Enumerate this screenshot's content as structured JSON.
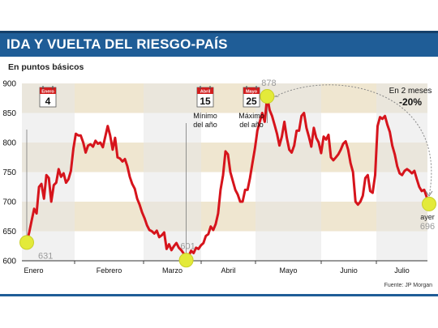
{
  "header": {
    "title": "IDA Y VUELTA DEL RIESGO-PAÍS"
  },
  "subtitle": "En puntos básicos",
  "source": "Fuente: JP Morgan",
  "colors": {
    "header": "#1f5d97",
    "line": "#d6141c",
    "band": "#efe6d0",
    "marker": "#e3ea3a",
    "month_shade": "#e6e6e6"
  },
  "chart_data": {
    "type": "line",
    "title": "IDA Y VUELTA DEL RIESGO-PAÍS",
    "ylabel": "En puntos básicos",
    "ylim": [
      600,
      900
    ],
    "yticks": [
      600,
      650,
      700,
      750,
      800,
      850,
      900
    ],
    "months": [
      "Enero",
      "Febrero",
      "Marzo",
      "Abril",
      "Mayo",
      "Junio",
      "Julio"
    ],
    "grid": false,
    "series": [
      {
        "values": [
          631,
          648,
          668,
          688,
          680,
          725,
          730,
          705,
          745,
          740,
          700,
          728,
          732,
          755,
          742,
          748,
          732,
          738,
          752,
          790,
          815,
          812,
          812,
          800,
          783,
          795,
          797,
          793,
          803,
          798,
          800,
          792,
          810,
          828,
          812,
          788,
          808,
          775,
          773,
          768,
          772,
          760,
          742,
          730,
          722,
          705,
          695,
          682,
          672,
          660,
          652,
          650,
          646,
          651,
          640,
          643,
          648,
          620,
          628,
          618,
          625,
          630,
          622,
          618,
          612,
          601,
          608,
          617,
          613,
          622,
          620,
          626,
          630,
          642,
          645,
          658,
          652,
          662,
          680,
          720,
          745,
          785,
          780,
          750,
          735,
          720,
          712,
          700,
          700,
          720,
          720,
          740,
          765,
          790,
          820,
          835,
          850,
          835,
          878,
          855,
          845,
          830,
          815,
          795,
          810,
          835,
          808,
          788,
          783,
          795,
          820,
          820,
          845,
          850,
          825,
          810,
          793,
          825,
          808,
          800,
          782,
          810,
          805,
          813,
          775,
          770,
          775,
          780,
          788,
          798,
          802,
          788,
          765,
          750,
          700,
          695,
          700,
          710,
          740,
          745,
          718,
          715,
          745,
          828,
          843,
          840,
          845,
          830,
          818,
          795,
          780,
          760,
          748,
          745,
          752,
          755,
          752,
          748,
          752,
          738,
          725,
          718,
          720,
          708,
          696
        ]
      }
    ],
    "annotations": [
      {
        "month": "Enero",
        "day": "4",
        "value": 631
      },
      {
        "month": "Abril",
        "day": "15",
        "label": "Mínimo del año",
        "value": 601
      },
      {
        "month": "Mayo",
        "day": "25",
        "label": "Máximo del año",
        "value": 878
      },
      {
        "label": "ayer",
        "value": 696
      }
    ],
    "change": {
      "label": "En 2 meses",
      "value": "-20%"
    }
  }
}
